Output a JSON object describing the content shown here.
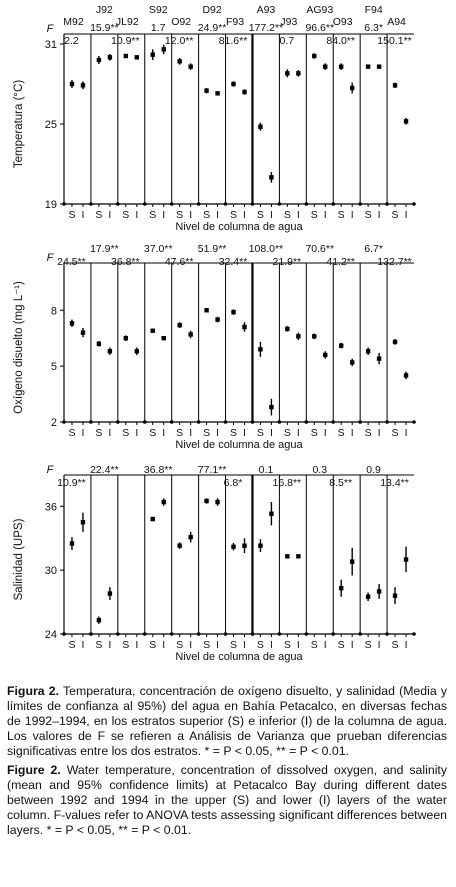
{
  "chart_data": [
    {
      "type": "scatter",
      "ylabel": "Temperatura (°C)",
      "xlabel": "Nivel de columna de agua",
      "ylim": [
        19,
        31
      ],
      "yticks": [
        19,
        25,
        31
      ],
      "f_label": "F",
      "level_labels": [
        "S",
        "I"
      ],
      "categories": [
        "M92",
        "J92",
        "JL92",
        "S92",
        "O92",
        "D92",
        "F93",
        "A93",
        "J93",
        "AG93",
        "O93",
        "F94",
        "A94"
      ],
      "f_values": [
        "2.2",
        "15.9**",
        "10.9**",
        "1.7",
        "12.0**",
        "24.9**",
        "81.6**",
        "177.2**",
        "0.7",
        "96.6**",
        "84.0**",
        "6.3*",
        "150.1**"
      ],
      "series": [
        {
          "name": "S",
          "values": [
            28.0,
            29.8,
            30.1,
            30.2,
            29.7,
            27.5,
            28.0,
            24.8,
            28.8,
            30.1,
            29.3,
            29.3,
            27.9
          ]
        },
        {
          "name": "I",
          "values": [
            27.9,
            30.0,
            30.0,
            30.6,
            29.3,
            27.3,
            27.4,
            21.0,
            28.8,
            29.3,
            27.7,
            29.3,
            25.2
          ]
        }
      ],
      "ci_half": [
        [
          0.3,
          0.3,
          0.15,
          0.4,
          0.25,
          0.2,
          0.2,
          0.3,
          0.3,
          0.2,
          0.25,
          0.1,
          0.2
        ],
        [
          0.3,
          0.25,
          0.15,
          0.35,
          0.25,
          0.15,
          0.2,
          0.4,
          0.25,
          0.25,
          0.4,
          0.1,
          0.25
        ]
      ]
    },
    {
      "type": "scatter",
      "ylabel": "Oxígeno disuelto (mg L⁻¹)",
      "xlabel": "Nivel de columna de agua",
      "ylim": [
        2,
        10
      ],
      "yticks": [
        2,
        5,
        8
      ],
      "f_label": "F",
      "level_labels": [
        "S",
        "I"
      ],
      "categories": [
        "M92",
        "J92",
        "JL92",
        "S92",
        "O92",
        "D92",
        "F93",
        "A93",
        "J93",
        "AG93",
        "O93",
        "F94",
        "A94"
      ],
      "f_values": [
        "24.5**",
        "17.9**",
        "36.8**",
        "37.0**",
        "47.6**",
        "51.9**",
        "32.4**",
        "108.0**",
        "21.9**",
        "70.6**",
        "41.2**",
        "6.7*",
        "132.7**"
      ],
      "series": [
        {
          "name": "S",
          "values": [
            7.3,
            6.2,
            6.5,
            6.9,
            7.2,
            8.0,
            7.9,
            5.9,
            7.0,
            6.6,
            6.1,
            5.8,
            6.3
          ]
        },
        {
          "name": "I",
          "values": [
            6.8,
            5.8,
            5.8,
            6.5,
            6.7,
            7.5,
            7.1,
            2.8,
            6.6,
            5.6,
            5.2,
            5.4,
            4.5
          ]
        }
      ],
      "ci_half": [
        [
          0.2,
          0.15,
          0.15,
          0.1,
          0.15,
          0.1,
          0.15,
          0.4,
          0.15,
          0.15,
          0.15,
          0.2,
          0.15
        ],
        [
          0.25,
          0.2,
          0.2,
          0.1,
          0.2,
          0.15,
          0.25,
          0.45,
          0.2,
          0.2,
          0.2,
          0.3,
          0.2
        ]
      ]
    },
    {
      "type": "scatter",
      "ylabel": "Salinidad (UPS)",
      "xlabel": "Nivel de columna de agua",
      "ylim": [
        24,
        38
      ],
      "yticks": [
        24,
        30,
        36
      ],
      "f_label": "F",
      "level_labels": [
        "S",
        "I"
      ],
      "categories": [
        "M92",
        "J92",
        "JL92",
        "S92",
        "O92",
        "D92",
        "F93",
        "A93",
        "J93",
        "AG93",
        "O93",
        "F94",
        "A94"
      ],
      "f_values": [
        "10.9**",
        "22.4**",
        "",
        "36.8**",
        "",
        "77.1**",
        "6.8*",
        "0.1",
        "16.8**",
        "0.3",
        "8.5**",
        "0.9",
        "13.4**"
      ],
      "series": [
        {
          "name": "S",
          "values": [
            32.5,
            25.3,
            null,
            34.8,
            32.3,
            36.5,
            32.2,
            32.3,
            31.3,
            null,
            28.3,
            27.5,
            27.6
          ]
        },
        {
          "name": "I",
          "values": [
            34.5,
            27.8,
            null,
            36.4,
            33.1,
            36.4,
            32.3,
            35.3,
            31.3,
            null,
            30.8,
            28.0,
            31.0
          ]
        }
      ],
      "ci_half": [
        [
          0.6,
          0.35,
          0,
          0.2,
          0.3,
          0.25,
          0.35,
          0.6,
          0.15,
          0,
          0.8,
          0.4,
          0.8
        ],
        [
          0.9,
          0.6,
          0,
          0.35,
          0.5,
          0.35,
          0.7,
          1.1,
          0.15,
          0,
          1.3,
          0.7,
          1.2
        ]
      ]
    }
  ],
  "caption": {
    "es_label": "Figura 2.",
    "es_text": " Temperatura, concentración de oxígeno disuelto, y salinidad (Media y límites de confianza al 95%) del agua en Bahía Petacalco, en diversas fechas de 1992–1994, en los estratos superior (S) e inferior (I) de la columna de agua. Los valores de F se refieren a Análisis de Varianza que prueban diferencias significativas entre los dos estratos. * = P < 0.05, ** = P < 0.01.",
    "en_label": "Figure 2.",
    "en_text": " Water temperature, concentration of dissolved oxygen, and salinity (mean and 95% confidence limits) at Petacalco Bay during different dates between 1992 and 1994 in the upper (S) and lower (I) layers of the water column. F-values refer to ANOVA tests assessing significant differences between layers. * = P < 0.05, ** = P < 0.01."
  }
}
